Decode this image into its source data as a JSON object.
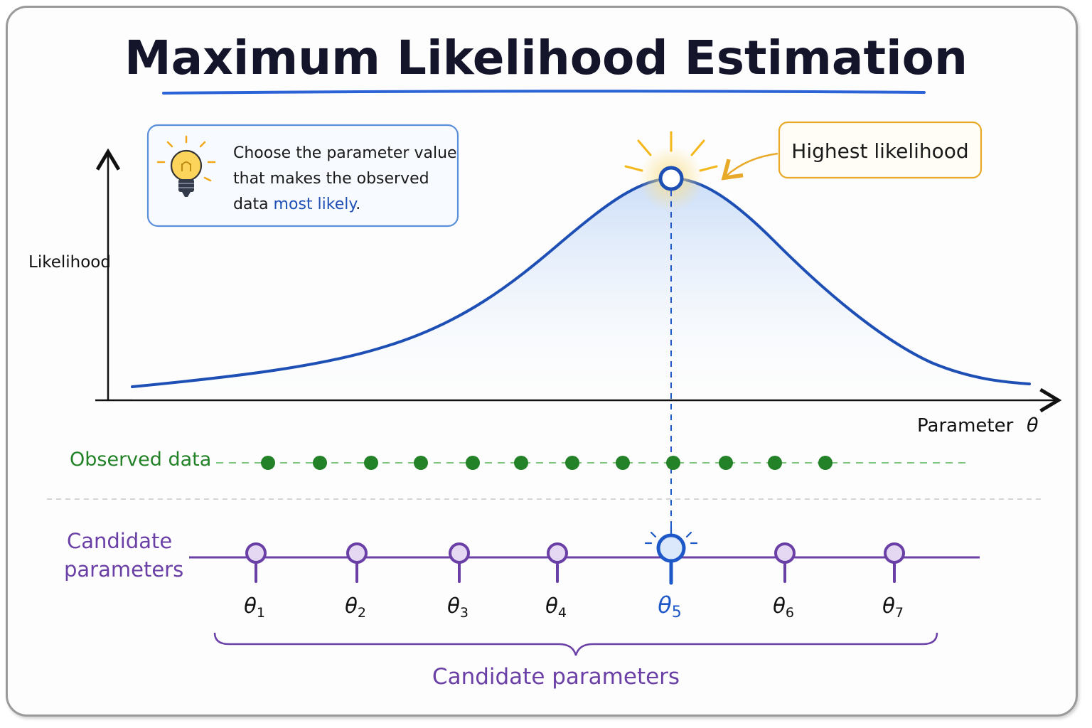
{
  "title": "Maximum Likelihood Estimation",
  "tip": {
    "icon": "lightbulb-icon",
    "line1": "Choose the parameter value",
    "line2": "that makes the observed",
    "line3_prefix": "data ",
    "line3_emphasis": "most likely",
    "line3_suffix": "."
  },
  "callout": {
    "text": "Highest likelihood"
  },
  "axes": {
    "y_label": "Likelihood",
    "x_label": "Parameter",
    "x_symbol": "θ"
  },
  "observed": {
    "label": "Observed data",
    "points": 12
  },
  "candidates": {
    "row_label_line1": "Candidate",
    "row_label_line2": "parameters",
    "items": [
      {
        "symbol": "θ",
        "sub": "1",
        "selected": false
      },
      {
        "symbol": "θ",
        "sub": "2",
        "selected": false
      },
      {
        "symbol": "θ",
        "sub": "3",
        "selected": false
      },
      {
        "symbol": "θ",
        "sub": "4",
        "selected": false
      },
      {
        "symbol": "θ",
        "sub": "5",
        "selected": true
      },
      {
        "symbol": "θ",
        "sub": "6",
        "selected": false
      },
      {
        "symbol": "θ",
        "sub": "7",
        "selected": false
      }
    ],
    "brace_label": "Candidate parameters"
  },
  "colors": {
    "curve": "#1d4fb5",
    "fill": "#dce8fb",
    "underline": "#2b63d6",
    "tip_border": "#5b8fd9",
    "callout_border": "#e9a928",
    "glow": "#f4b81c",
    "observed": "#238228",
    "candidate": "#6a3fa6",
    "selected": "#1d57c8"
  }
}
